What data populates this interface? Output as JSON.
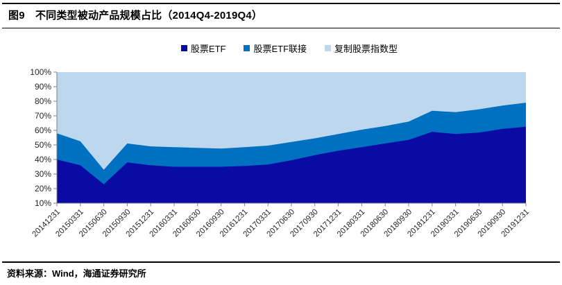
{
  "figure": {
    "title": "图9　不同类型被动产品规模占比（2014Q4-2019Q4）",
    "source": "资料来源：Wind，海通证券研究所"
  },
  "chart_data": {
    "type": "area",
    "stacked": true,
    "stack_total": 100,
    "title": "不同类型被动产品规模占比（2014Q4-2019Q4）",
    "xlabel": "",
    "ylabel": "",
    "ylim": [
      10,
      100
    ],
    "y_tick_step": 10,
    "y_tick_suffix": "%",
    "grid": false,
    "legend_position": "top",
    "x": [
      "20141231",
      "20150331",
      "20150630",
      "20150930",
      "20151231",
      "20160331",
      "20160630",
      "20160930",
      "20161231",
      "20170331",
      "20170630",
      "20170930",
      "20171231",
      "20180331",
      "20180630",
      "20180930",
      "20181231",
      "20190331",
      "20190630",
      "20190930",
      "20191231"
    ],
    "series": [
      {
        "name": "股票ETF",
        "color": "#0A0AA5",
        "values": [
          40,
          36,
          23,
          38,
          36,
          35,
          35,
          35,
          35.5,
          36.5,
          39.5,
          43,
          46,
          48.5,
          51,
          53.5,
          59,
          57.5,
          58.5,
          61,
          62.5
        ]
      },
      {
        "name": "股票ETF联接",
        "color": "#0070C0",
        "values": [
          18,
          16.5,
          10,
          13,
          13,
          13.5,
          13,
          12.5,
          13,
          13,
          12.5,
          11.5,
          11.5,
          12,
          12,
          12.5,
          14.5,
          15,
          16,
          16,
          16.5
        ]
      },
      {
        "name": "复制股票指数型",
        "color": "#BDD7EE",
        "values": [
          42,
          47.5,
          67,
          49,
          51,
          51.5,
          52,
          52.5,
          51.5,
          50.5,
          48,
          45.5,
          42.5,
          39.5,
          37,
          34,
          26.5,
          27.5,
          25.5,
          23,
          21
        ]
      }
    ],
    "axis_color": "#808080",
    "tick_label_color": "#262626"
  }
}
